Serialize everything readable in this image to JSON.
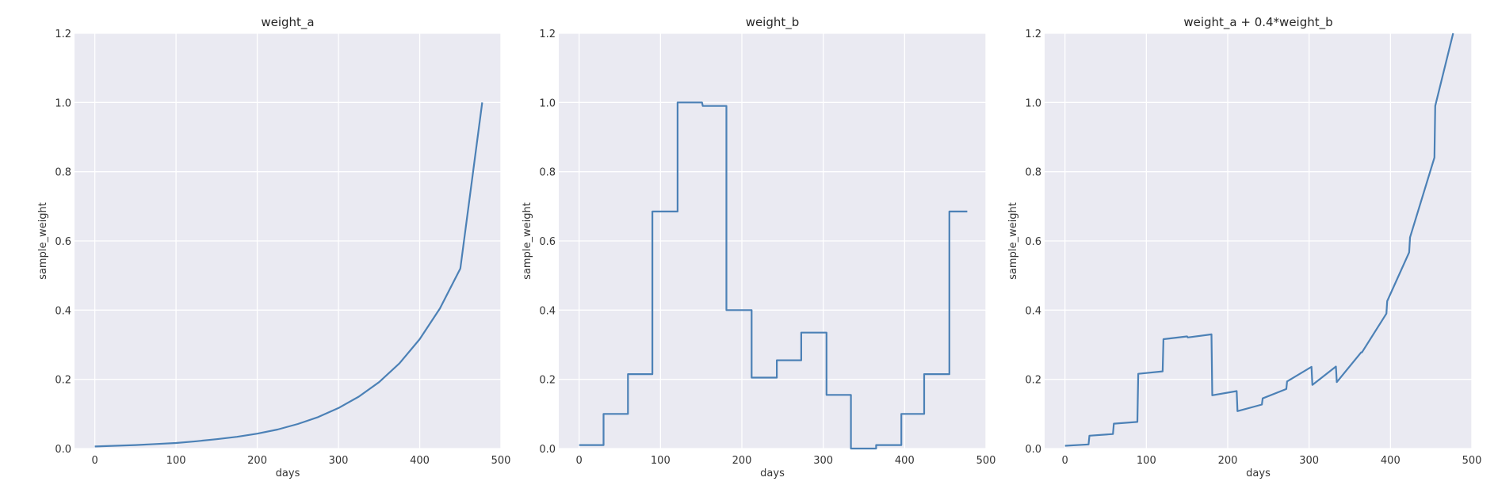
{
  "chart_data": [
    {
      "type": "line",
      "title": "weight_a",
      "xlabel": "days",
      "ylabel": "sample_weight",
      "xlim": [
        -25,
        500
      ],
      "ylim": [
        0,
        1.2
      ],
      "xticks": [
        0,
        100,
        200,
        300,
        400,
        500
      ],
      "yticks": [
        0.0,
        0.2,
        0.4,
        0.6,
        0.8,
        1.0,
        1.2
      ],
      "ytick_labels": [
        "0.0",
        "0.2",
        "0.4",
        "0.6",
        "0.8",
        "1.0",
        "1.2"
      ],
      "grid": true,
      "series": [
        {
          "color": "#4c81b6",
          "x": [
            0,
            25,
            50,
            75,
            100,
            125,
            150,
            175,
            200,
            225,
            250,
            275,
            300,
            325,
            350,
            375,
            400,
            425,
            450,
            477
          ],
          "y": [
            0.006,
            0.008,
            0.01,
            0.013,
            0.016,
            0.021,
            0.027,
            0.034,
            0.043,
            0.055,
            0.071,
            0.091,
            0.117,
            0.15,
            0.192,
            0.246,
            0.316,
            0.405,
            0.52,
            1.0
          ]
        }
      ]
    },
    {
      "type": "line",
      "title": "weight_b",
      "xlabel": "days",
      "ylabel": "sample_weight",
      "xlim": [
        -25,
        500
      ],
      "ylim": [
        0,
        1.2
      ],
      "xticks": [
        0,
        100,
        200,
        300,
        400,
        500
      ],
      "yticks": [
        0.0,
        0.2,
        0.4,
        0.6,
        0.8,
        1.0,
        1.2
      ],
      "ytick_labels": [
        "0.0",
        "0.2",
        "0.4",
        "0.6",
        "0.8",
        "1.0",
        "1.2"
      ],
      "grid": true,
      "series": [
        {
          "color": "#4c81b6",
          "x": [
            0,
            30,
            30,
            60,
            60,
            90,
            90,
            121,
            121,
            151,
            152,
            181,
            181,
            212,
            212,
            243,
            243,
            273,
            273,
            304,
            304,
            334,
            334,
            365,
            365,
            396,
            396,
            424,
            424,
            455,
            455,
            477
          ],
          "y": [
            0.01,
            0.01,
            0.1,
            0.1,
            0.215,
            0.215,
            0.685,
            0.685,
            1.0,
            1.0,
            0.99,
            0.99,
            0.4,
            0.4,
            0.205,
            0.205,
            0.255,
            0.255,
            0.335,
            0.335,
            0.155,
            0.155,
            0.0,
            0.0,
            0.01,
            0.01,
            0.1,
            0.1,
            0.215,
            0.215,
            0.685,
            0.685
          ]
        }
      ]
    },
    {
      "type": "line",
      "title": "weight_a + 0.4*weight_b",
      "xlabel": "days",
      "ylabel": "sample_weight",
      "xlim": [
        -25,
        500
      ],
      "ylim": [
        0,
        1.2
      ],
      "xticks": [
        0,
        100,
        200,
        300,
        400,
        500
      ],
      "yticks": [
        0.0,
        0.2,
        0.4,
        0.6,
        0.8,
        1.0,
        1.2
      ],
      "ytick_labels": [
        "0.0",
        "0.2",
        "0.4",
        "0.6",
        "0.8",
        "1.0",
        "1.2"
      ],
      "grid": true,
      "series": [
        {
          "color": "#4c81b6",
          "x": [
            0,
            29,
            30,
            59,
            60,
            89,
            90,
            120,
            121,
            150,
            151,
            180,
            181,
            211,
            212,
            242,
            243,
            272,
            273,
            303,
            304,
            333,
            334,
            364,
            365,
            395,
            396,
            423,
            424,
            454,
            455,
            477
          ],
          "y": [
            0.008,
            0.012,
            0.037,
            0.042,
            0.072,
            0.077,
            0.216,
            0.223,
            0.316,
            0.324,
            0.321,
            0.33,
            0.154,
            0.166,
            0.108,
            0.127,
            0.145,
            0.172,
            0.194,
            0.236,
            0.184,
            0.237,
            0.192,
            0.278,
            0.278,
            0.39,
            0.426,
            0.567,
            0.61,
            0.841,
            0.99,
            1.2
          ]
        }
      ]
    }
  ]
}
